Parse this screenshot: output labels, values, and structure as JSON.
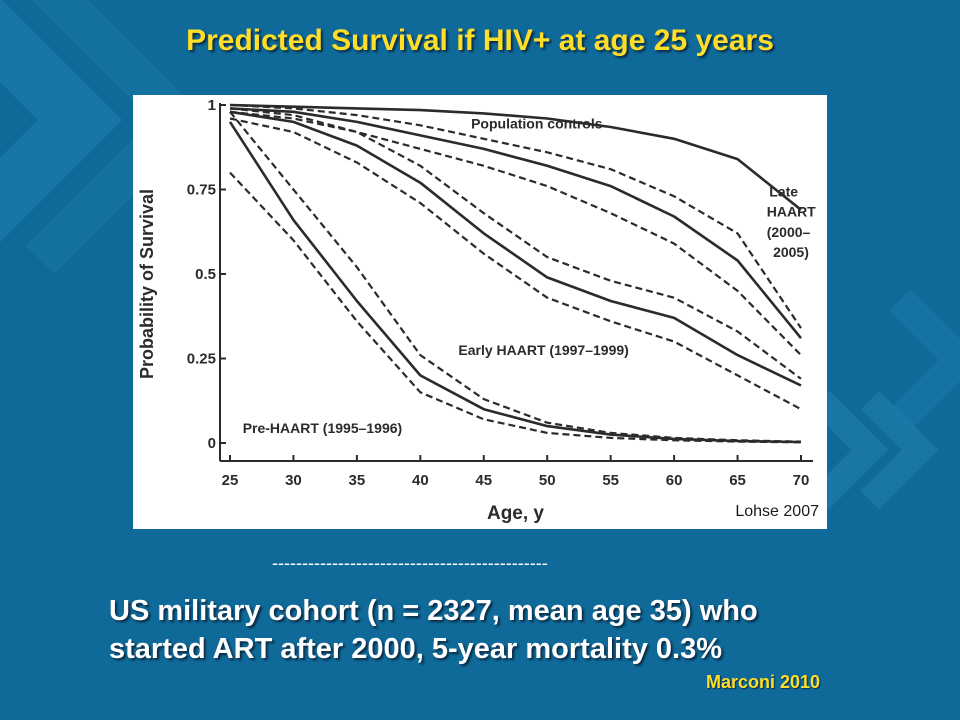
{
  "title": "Predicted Survival if HIV+ at age 25 years",
  "citation_chart": "Lohse 2007",
  "separator": "----------------------------------------------",
  "summary": {
    "line1": "US military cohort (n = 2327, mean age 35) who",
    "line2": "started ART after 2000, 5-year mortality 0.3%"
  },
  "citation_bottom": "Marconi 2010",
  "colors": {
    "background": "#0f6a99",
    "title": "#ffde2a",
    "chevron": "#1f7fae"
  },
  "chart_data": {
    "type": "line",
    "xlabel": "Age, y",
    "ylabel": "Probability of Survival",
    "xlim": [
      25,
      70
    ],
    "ylim": [
      0,
      1
    ],
    "x_ticks": [
      25,
      30,
      35,
      40,
      45,
      50,
      55,
      60,
      65,
      70
    ],
    "y_ticks": [
      0,
      0.25,
      0.5,
      0.75,
      1
    ],
    "y_tick_labels": [
      "0",
      "0.25",
      "0.5",
      "0.75",
      "1"
    ],
    "grid": false,
    "annotations": [
      {
        "text": "Population controls",
        "x": 44,
        "y": 0.93
      },
      {
        "text": "Late",
        "x": 67.5,
        "y": 0.73
      },
      {
        "text": "HAART",
        "x": 67.3,
        "y": 0.67
      },
      {
        "text": "(2000–",
        "x": 67.3,
        "y": 0.61
      },
      {
        "text": "2005)",
        "x": 67.8,
        "y": 0.55
      },
      {
        "text": "Early HAART (1997–1999)",
        "x": 43,
        "y": 0.26
      },
      {
        "text": "Pre-HAART (1995–1996)",
        "x": 26,
        "y": 0.03
      }
    ],
    "series": [
      {
        "key": "population-controls",
        "style": "solid",
        "x": [
          25,
          30,
          35,
          40,
          45,
          50,
          55,
          60,
          65,
          70
        ],
        "y": [
          1.0,
          0.995,
          0.99,
          0.985,
          0.975,
          0.96,
          0.935,
          0.9,
          0.84,
          0.69
        ]
      },
      {
        "key": "late-haart",
        "style": "solid",
        "x": [
          25,
          30,
          35,
          40,
          45,
          50,
          55,
          60,
          65,
          70
        ],
        "y": [
          0.99,
          0.98,
          0.95,
          0.91,
          0.87,
          0.82,
          0.76,
          0.67,
          0.54,
          0.31
        ]
      },
      {
        "key": "late-haart-upper",
        "style": "dashed",
        "x": [
          25,
          30,
          35,
          40,
          45,
          50,
          55,
          60,
          65,
          70
        ],
        "y": [
          1.0,
          0.99,
          0.97,
          0.94,
          0.9,
          0.86,
          0.81,
          0.73,
          0.62,
          0.34
        ]
      },
      {
        "key": "late-haart-lower",
        "style": "dashed",
        "x": [
          25,
          30,
          35,
          40,
          45,
          50,
          55,
          60,
          65,
          70
        ],
        "y": [
          0.98,
          0.96,
          0.92,
          0.87,
          0.82,
          0.76,
          0.68,
          0.59,
          0.45,
          0.26
        ]
      },
      {
        "key": "early-haart",
        "style": "solid",
        "x": [
          25,
          30,
          35,
          40,
          45,
          50,
          55,
          60,
          65,
          70
        ],
        "y": [
          0.98,
          0.95,
          0.88,
          0.77,
          0.62,
          0.49,
          0.42,
          0.37,
          0.26,
          0.17
        ]
      },
      {
        "key": "early-haart-upper",
        "style": "dashed",
        "x": [
          25,
          30,
          35,
          40,
          45,
          50,
          55,
          60,
          65,
          70
        ],
        "y": [
          0.99,
          0.97,
          0.92,
          0.82,
          0.68,
          0.55,
          0.48,
          0.43,
          0.33,
          0.19
        ]
      },
      {
        "key": "early-haart-lower",
        "style": "dashed",
        "x": [
          25,
          30,
          35,
          40,
          45,
          50,
          55,
          60,
          65,
          70
        ],
        "y": [
          0.96,
          0.92,
          0.83,
          0.71,
          0.56,
          0.43,
          0.36,
          0.3,
          0.2,
          0.1
        ]
      },
      {
        "key": "pre-haart",
        "style": "solid",
        "x": [
          25,
          30,
          35,
          40,
          45,
          50,
          55,
          60,
          65,
          70
        ],
        "y": [
          0.95,
          0.66,
          0.42,
          0.2,
          0.1,
          0.05,
          0.025,
          0.012,
          0.006,
          0.003
        ]
      },
      {
        "key": "pre-haart-upper",
        "style": "dashed",
        "x": [
          25,
          30,
          35,
          40,
          45,
          50,
          55,
          60,
          65,
          70
        ],
        "y": [
          0.98,
          0.75,
          0.52,
          0.26,
          0.13,
          0.06,
          0.03,
          0.015,
          0.008,
          0.004
        ]
      },
      {
        "key": "pre-haart-lower",
        "style": "dashed",
        "x": [
          25,
          30,
          35,
          40,
          45,
          50,
          55,
          60,
          65,
          70
        ],
        "y": [
          0.8,
          0.6,
          0.36,
          0.15,
          0.07,
          0.03,
          0.015,
          0.008,
          0.004,
          0.002
        ]
      }
    ]
  }
}
